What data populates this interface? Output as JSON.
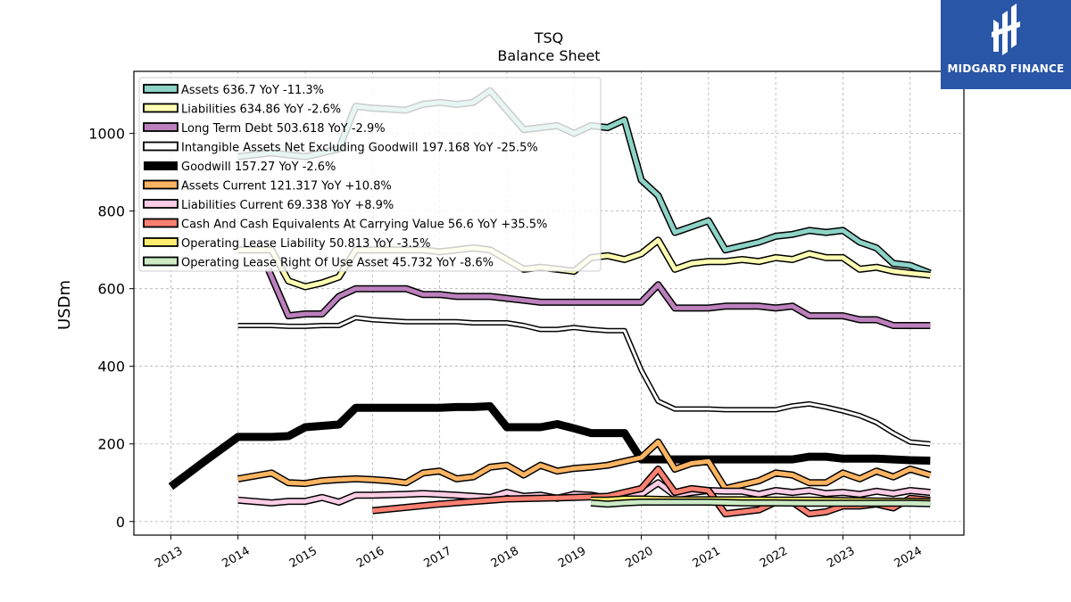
{
  "brand": {
    "name": "MIDGARD FINANCE",
    "bg_color": "#2a56a8",
    "text_color": "#ffffff",
    "icon": "midgard-logo-icon"
  },
  "chart_data": {
    "type": "line",
    "title": "TSQ",
    "subtitle": "Balance  Sheet",
    "xlabel": "",
    "ylabel": "USDm",
    "xlim": [
      2012.45,
      2024.8
    ],
    "ylim": [
      -35,
      1160
    ],
    "yticks": [
      0,
      200,
      400,
      600,
      800,
      1000
    ],
    "xticks": [
      "2013",
      "2014",
      "2015",
      "2016",
      "2017",
      "2018",
      "2019",
      "2020",
      "2021",
      "2022",
      "2023",
      "2024"
    ],
    "grid": true,
    "legend_position": "top-left",
    "series": [
      {
        "name": "Assets",
        "legend": "Assets  636.7 YoY -11.3%",
        "color": "#8dd3c7",
        "width": 5,
        "x": [
          2014.0,
          2014.5,
          2014.75,
          2015.0,
          2015.25,
          2015.5,
          2015.75,
          2016.0,
          2016.5,
          2016.75,
          2017.0,
          2017.25,
          2017.5,
          2017.75,
          2018.25,
          2018.5,
          2018.75,
          2019.0,
          2019.25,
          2019.5,
          2019.75,
          2020.0,
          2020.25,
          2020.5,
          2020.75,
          2021.0,
          2021.25,
          2021.5,
          2021.75,
          2022.0,
          2022.25,
          2022.5,
          2022.75,
          2023.0,
          2023.25,
          2023.5,
          2023.75,
          2024.0,
          2024.3
        ],
        "y": [
          940,
          950,
          945,
          940,
          950,
          960,
          1070,
          1065,
          1060,
          1075,
          1080,
          1075,
          1080,
          1110,
          1010,
          1015,
          1020,
          1000,
          1020,
          1015,
          1035,
          880,
          840,
          745,
          760,
          775,
          700,
          710,
          720,
          735,
          740,
          750,
          745,
          750,
          720,
          705,
          665,
          660,
          640
        ]
      },
      {
        "name": "Liabilities",
        "legend": "Liabilities  634.86 YoY -2.6%",
        "color": "#ffffb3",
        "width": 5,
        "x": [
          2014.0,
          2014.5,
          2014.75,
          2015.0,
          2015.25,
          2015.5,
          2015.75,
          2016.0,
          2016.5,
          2016.75,
          2017.0,
          2017.25,
          2017.5,
          2017.75,
          2018.25,
          2018.5,
          2018.75,
          2019.0,
          2019.25,
          2019.5,
          2019.75,
          2020.0,
          2020.25,
          2020.5,
          2020.75,
          2021.0,
          2021.25,
          2021.5,
          2021.75,
          2022.0,
          2022.25,
          2022.5,
          2022.75,
          2023.0,
          2023.25,
          2023.5,
          2023.75,
          2024.0,
          2024.3
        ],
        "y": [
          700,
          700,
          620,
          605,
          615,
          630,
          700,
          700,
          700,
          700,
          695,
          700,
          705,
          700,
          650,
          655,
          650,
          645,
          680,
          685,
          675,
          690,
          725,
          650,
          665,
          670,
          670,
          675,
          670,
          680,
          675,
          690,
          680,
          680,
          650,
          655,
          645,
          640,
          635
        ]
      },
      {
        "name": "Long Term Debt",
        "legend": "Long Term Debt  503.618 YoY -2.9%",
        "color": "#bc80bd",
        "width": 5,
        "x": [
          2014.45,
          2014.75,
          2015.0,
          2015.25,
          2015.5,
          2015.75,
          2016.0,
          2016.5,
          2016.75,
          2017.0,
          2017.25,
          2017.5,
          2017.75,
          2018.25,
          2018.5,
          2018.75,
          2019.0,
          2019.25,
          2019.5,
          2019.75,
          2020.0,
          2020.25,
          2020.5,
          2020.75,
          2021.0,
          2021.25,
          2021.5,
          2021.75,
          2022.0,
          2022.25,
          2022.5,
          2022.75,
          2023.0,
          2023.25,
          2023.5,
          2023.75,
          2024.0,
          2024.3
        ],
        "y": [
          650,
          530,
          535,
          535,
          580,
          600,
          600,
          600,
          585,
          585,
          580,
          580,
          580,
          570,
          565,
          565,
          565,
          565,
          565,
          565,
          565,
          610,
          550,
          550,
          550,
          555,
          555,
          555,
          550,
          555,
          530,
          530,
          530,
          520,
          520,
          505,
          505,
          505
        ]
      },
      {
        "name": "Intangible Assets Net Excluding Goodwill",
        "legend": "Intangible Assets Net Excluding Goodwill  197.168 YoY -25.5%",
        "color": "#ffffff",
        "width": 3,
        "x": [
          2014.0,
          2014.5,
          2014.75,
          2015.0,
          2015.25,
          2015.5,
          2015.75,
          2016.0,
          2016.5,
          2016.75,
          2017.0,
          2017.25,
          2017.5,
          2017.75,
          2018.0,
          2018.25,
          2018.5,
          2018.75,
          2019.0,
          2019.25,
          2019.5,
          2019.75,
          2020.0,
          2020.25,
          2020.5,
          2020.75,
          2021.0,
          2021.25,
          2021.5,
          2021.75,
          2022.0,
          2022.25,
          2022.5,
          2022.75,
          2023.0,
          2023.25,
          2023.5,
          2023.75,
          2024.0,
          2024.3
        ],
        "y": [
          505,
          505,
          503,
          503,
          505,
          505,
          525,
          520,
          515,
          515,
          515,
          515,
          512,
          512,
          512,
          505,
          495,
          495,
          500,
          495,
          492,
          492,
          390,
          310,
          290,
          290,
          290,
          288,
          288,
          288,
          288,
          298,
          303,
          295,
          285,
          273,
          255,
          228,
          205,
          200
        ]
      },
      {
        "name": "Goodwill",
        "legend": "Goodwill  157.27 YoY -2.6%",
        "color": "#000000",
        "width": 7,
        "x": [
          2013.0,
          2013.5,
          2014.0,
          2014.5,
          2014.75,
          2015.0,
          2015.5,
          2015.75,
          2016.0,
          2016.5,
          2017.0,
          2017.25,
          2017.5,
          2017.75,
          2018.0,
          2018.25,
          2018.5,
          2018.75,
          2019.0,
          2019.25,
          2019.5,
          2019.75,
          2020.0,
          2020.5,
          2021.0,
          2021.5,
          2022.0,
          2022.25,
          2022.5,
          2022.75,
          2023.0,
          2023.5,
          2024.0,
          2024.3
        ],
        "y": [
          90,
          155,
          218,
          218,
          220,
          243,
          250,
          293,
          293,
          293,
          293,
          295,
          295,
          297,
          243,
          243,
          243,
          251,
          240,
          228,
          228,
          228,
          160,
          160,
          160,
          160,
          160,
          160,
          167,
          167,
          162,
          162,
          158,
          157
        ]
      },
      {
        "name": "Assets Current",
        "legend": "Assets Current  121.317 YoY +10.8%",
        "color": "#fdb462",
        "width": 5,
        "x": [
          2014.0,
          2014.5,
          2014.75,
          2015.0,
          2015.25,
          2015.5,
          2015.75,
          2016.0,
          2016.25,
          2016.5,
          2016.75,
          2017.0,
          2017.25,
          2017.5,
          2017.75,
          2018.0,
          2018.25,
          2018.5,
          2018.75,
          2019.0,
          2019.25,
          2019.5,
          2019.75,
          2020.0,
          2020.25,
          2020.5,
          2020.75,
          2021.0,
          2021.25,
          2021.5,
          2021.75,
          2022.0,
          2022.25,
          2022.5,
          2022.75,
          2023.0,
          2023.25,
          2023.5,
          2023.75,
          2024.0,
          2024.3
        ],
        "y": [
          110,
          125,
          100,
          98,
          105,
          108,
          110,
          108,
          105,
          100,
          125,
          130,
          110,
          115,
          140,
          145,
          120,
          145,
          130,
          137,
          140,
          145,
          155,
          165,
          205,
          135,
          150,
          155,
          85,
          95,
          105,
          125,
          120,
          100,
          100,
          125,
          110,
          130,
          115,
          135,
          120
        ]
      },
      {
        "name": "Liabilities Current",
        "legend": "Liabilities Current  69.338 YoY +8.9%",
        "color": "#fccde5",
        "width": 5,
        "x": [
          2014.0,
          2014.5,
          2014.75,
          2015.0,
          2015.25,
          2015.5,
          2015.75,
          2016.0,
          2016.5,
          2016.75,
          2017.0,
          2017.25,
          2017.5,
          2017.75,
          2018.0,
          2018.25,
          2018.5,
          2018.75,
          2019.0,
          2019.25,
          2019.5,
          2019.75,
          2020.0,
          2020.25,
          2020.5,
          2020.75,
          2021.0,
          2021.25,
          2021.5,
          2021.75,
          2022.0,
          2022.25,
          2022.5,
          2022.75,
          2023.0,
          2023.25,
          2023.5,
          2023.75,
          2024.0,
          2024.3
        ],
        "y": [
          55,
          48,
          52,
          52,
          62,
          50,
          68,
          68,
          70,
          72,
          70,
          68,
          65,
          62,
          75,
          65,
          68,
          60,
          70,
          68,
          60,
          65,
          70,
          100,
          68,
          75,
          80,
          78,
          78,
          70,
          80,
          75,
          80,
          72,
          75,
          70,
          78,
          72,
          80,
          75
        ]
      },
      {
        "name": "Cash And Cash Equivalents At Carrying Value",
        "legend": "Cash And Cash Equivalents At Carrying Value  56.6 YoY +35.5%",
        "color": "#fb8072",
        "width": 5,
        "x": [
          2016.0,
          2017.0,
          2018.0,
          2019.0,
          2019.5,
          2019.75,
          2020.0,
          2020.25,
          2020.5,
          2020.75,
          2021.0,
          2021.25,
          2021.5,
          2021.75,
          2022.0,
          2022.25,
          2022.5,
          2022.75,
          2023.0,
          2023.25,
          2023.5,
          2023.75,
          2024.0,
          2024.3
        ],
        "y": [
          28,
          45,
          58,
          62,
          65,
          75,
          85,
          135,
          75,
          85,
          80,
          20,
          25,
          30,
          50,
          50,
          20,
          25,
          40,
          40,
          45,
          35,
          60,
          55
        ]
      },
      {
        "name": "Operating Lease Liability",
        "legend": "Operating Lease Liability  50.813 YoY -3.5%",
        "color": "#ffed6f",
        "width": 5,
        "x": [
          2019.25,
          2019.5,
          2019.75,
          2020.0,
          2020.5,
          2021.0,
          2021.5,
          2022.0,
          2022.5,
          2023.0,
          2023.5,
          2024.0,
          2024.3
        ],
        "y": [
          55,
          55,
          58,
          58,
          56,
          56,
          56,
          55,
          55,
          54,
          53,
          52,
          51
        ]
      },
      {
        "name": "Operating Lease Right Of Use Asset",
        "legend": "Operating Lease Right Of Use Asset  45.732 YoY -8.6%",
        "color": "#ccebc5",
        "width": 5,
        "x": [
          2019.25,
          2019.5,
          2019.75,
          2020.0,
          2020.5,
          2021.0,
          2021.5,
          2022.0,
          2022.5,
          2023.0,
          2023.5,
          2024.0,
          2024.3
        ],
        "y": [
          48,
          45,
          48,
          50,
          50,
          50,
          48,
          48,
          47,
          47,
          47,
          47,
          46
        ]
      }
    ]
  }
}
